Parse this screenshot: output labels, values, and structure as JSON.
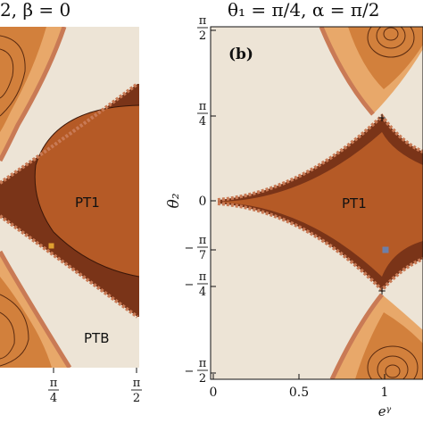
{
  "chart_data": [
    {
      "type": "heatmap",
      "panel": "a",
      "title": "2, β = 0",
      "x_ticks": [
        {
          "value": 0.785,
          "num": "π",
          "den": "4"
        },
        {
          "value": 1.571,
          "num": "π",
          "den": "2"
        }
      ],
      "regions": [
        "PT1",
        "PTB"
      ],
      "marker": {
        "x": 1.0,
        "y": -0.45,
        "color": "#e0a030"
      }
    },
    {
      "type": "heatmap",
      "panel": "b",
      "panel_label": "(b)",
      "title": "θ₁ = π/4, α = π/2",
      "xlabel": "eᵞ",
      "ylabel": "θ₂",
      "xlim": [
        -0.1,
        1.5
      ],
      "ylim": [
        -1.7,
        1.7
      ],
      "x_ticks": [
        {
          "value": 0,
          "label": "0"
        },
        {
          "value": 0.5,
          "label": "0.5"
        },
        {
          "value": 1,
          "label": "1"
        }
      ],
      "y_ticks": [
        {
          "value": 1.571,
          "num": "π",
          "den": "2",
          "sign": ""
        },
        {
          "value": 0.785,
          "num": "π",
          "den": "4",
          "sign": ""
        },
        {
          "value": 0,
          "label": "0"
        },
        {
          "value": -0.449,
          "num": "π",
          "den": "7",
          "sign": "−"
        },
        {
          "value": -0.785,
          "num": "π",
          "den": "4",
          "sign": "−"
        },
        {
          "value": -1.571,
          "num": "π",
          "den": "2",
          "sign": "−"
        }
      ],
      "regions": [
        "PT1"
      ],
      "marker": {
        "x": 1.0,
        "y": -0.449,
        "color": "#6d7fa8"
      }
    }
  ],
  "colors": {
    "background": "#ede4d6",
    "pt_dark": "#7a3418",
    "pt_mid": "#b55a26",
    "boundary": "#c97a55",
    "lobe_light": "#f3d0a6",
    "lobe_mid": "#e8a86a",
    "lobe_dark": "#d2803c"
  }
}
